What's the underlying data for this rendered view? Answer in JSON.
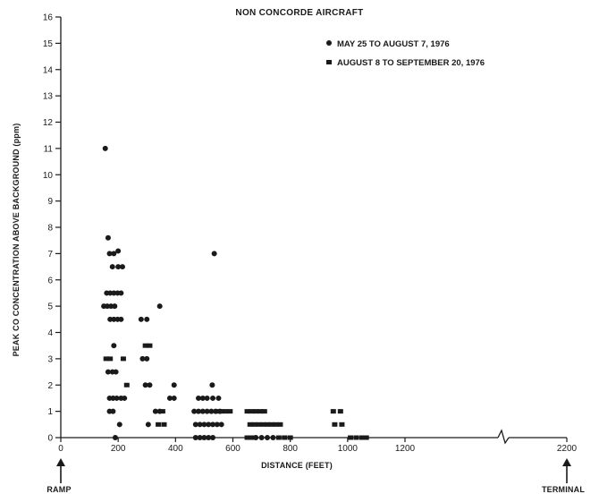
{
  "chart_data": {
    "type": "scatter",
    "title": "NON CONCORDE AIRCRAFT",
    "xlabel": "DISTANCE (FEET)",
    "ylabel": "PEAK CO CONCENTRATION ABOVE BACKGROUND (ppm)",
    "xlim": [
      0,
      1200
    ],
    "ylim": [
      0,
      16
    ],
    "x_ticks": [
      "0",
      "200",
      "400",
      "600",
      "800",
      "1000",
      "1200",
      "2200"
    ],
    "y_ticks": [
      "0",
      "1",
      "2",
      "3",
      "4",
      "5",
      "6",
      "7",
      "8",
      "9",
      "10",
      "11",
      "12",
      "13",
      "14",
      "15",
      "16"
    ],
    "x_axis_break": true,
    "x_far_end_value": 2200,
    "annotations": {
      "left": "RAMP",
      "right": "TERMINAL"
    },
    "legend_position": "top-right",
    "series": [
      {
        "name": "MAY 25 TO AUGUST 7, 1976",
        "marker": "circle",
        "points": [
          [
            155,
            11.0
          ],
          [
            165,
            7.6
          ],
          [
            170,
            7.0
          ],
          [
            185,
            7.0
          ],
          [
            200,
            7.1
          ],
          [
            180,
            6.5
          ],
          [
            200,
            6.5
          ],
          [
            215,
            6.5
          ],
          [
            160,
            5.5
          ],
          [
            172,
            5.5
          ],
          [
            185,
            5.5
          ],
          [
            198,
            5.5
          ],
          [
            210,
            5.5
          ],
          [
            150,
            5.0
          ],
          [
            162,
            5.0
          ],
          [
            175,
            5.0
          ],
          [
            188,
            5.0
          ],
          [
            172,
            4.5
          ],
          [
            185,
            4.5
          ],
          [
            198,
            4.5
          ],
          [
            210,
            4.5
          ],
          [
            185,
            3.5
          ],
          [
            165,
            2.5
          ],
          [
            180,
            2.5
          ],
          [
            192,
            2.5
          ],
          [
            170,
            1.5
          ],
          [
            182,
            1.5
          ],
          [
            195,
            1.5
          ],
          [
            210,
            1.5
          ],
          [
            222,
            1.5
          ],
          [
            170,
            1.0
          ],
          [
            182,
            1.0
          ],
          [
            205,
            0.5
          ],
          [
            190,
            0.0
          ],
          [
            280,
            4.5
          ],
          [
            300,
            4.5
          ],
          [
            345,
            5.0
          ],
          [
            285,
            3.0
          ],
          [
            300,
            3.0
          ],
          [
            295,
            2.0
          ],
          [
            310,
            2.0
          ],
          [
            395,
            2.0
          ],
          [
            380,
            1.5
          ],
          [
            395,
            1.5
          ],
          [
            330,
            1.0
          ],
          [
            345,
            1.0
          ],
          [
            305,
            0.5
          ],
          [
            535,
            7.0
          ],
          [
            480,
            1.5
          ],
          [
            495,
            1.5
          ],
          [
            510,
            1.5
          ],
          [
            530,
            1.5
          ],
          [
            550,
            1.5
          ],
          [
            465,
            1.0
          ],
          [
            480,
            1.0
          ],
          [
            495,
            1.0
          ],
          [
            510,
            1.0
          ],
          [
            525,
            1.0
          ],
          [
            540,
            1.0
          ],
          [
            555,
            1.0
          ],
          [
            470,
            0.5
          ],
          [
            485,
            0.5
          ],
          [
            500,
            0.5
          ],
          [
            515,
            0.5
          ],
          [
            530,
            0.5
          ],
          [
            545,
            0.5
          ],
          [
            560,
            0.5
          ],
          [
            470,
            0.0
          ],
          [
            485,
            0.0
          ],
          [
            500,
            0.0
          ],
          [
            515,
            0.0
          ],
          [
            530,
            0.0
          ],
          [
            528,
            2.0
          ],
          [
            680,
            0.0
          ],
          [
            700,
            0.0
          ],
          [
            720,
            0.0
          ],
          [
            740,
            0.0
          ]
        ]
      },
      {
        "name": "AUGUST 8 TO SEPTEMBER 20, 1976",
        "marker": "square",
        "points": [
          [
            158,
            3.0
          ],
          [
            172,
            3.0
          ],
          [
            230,
            2.0
          ],
          [
            218,
            3.0
          ],
          [
            310,
            3.5
          ],
          [
            295,
            3.5
          ],
          [
            355,
            1.0
          ],
          [
            360,
            0.5
          ],
          [
            340,
            0.5
          ],
          [
            545,
            1.0
          ],
          [
            560,
            1.0
          ],
          [
            575,
            1.0
          ],
          [
            590,
            1.0
          ],
          [
            650,
            1.0
          ],
          [
            665,
            1.0
          ],
          [
            680,
            1.0
          ],
          [
            695,
            1.0
          ],
          [
            710,
            1.0
          ],
          [
            660,
            0.5
          ],
          [
            675,
            0.5
          ],
          [
            690,
            0.5
          ],
          [
            705,
            0.5
          ],
          [
            720,
            0.5
          ],
          [
            735,
            0.5
          ],
          [
            750,
            0.5
          ],
          [
            765,
            0.5
          ],
          [
            650,
            0.0
          ],
          [
            665,
            0.0
          ],
          [
            760,
            0.0
          ],
          [
            780,
            0.0
          ],
          [
            800,
            0.0
          ],
          [
            950,
            1.0
          ],
          [
            975,
            1.0
          ],
          [
            955,
            0.5
          ],
          [
            980,
            0.5
          ],
          [
            1010,
            0.0
          ],
          [
            1030,
            0.0
          ],
          [
            1050,
            0.0
          ],
          [
            1065,
            0.0
          ]
        ]
      }
    ]
  }
}
